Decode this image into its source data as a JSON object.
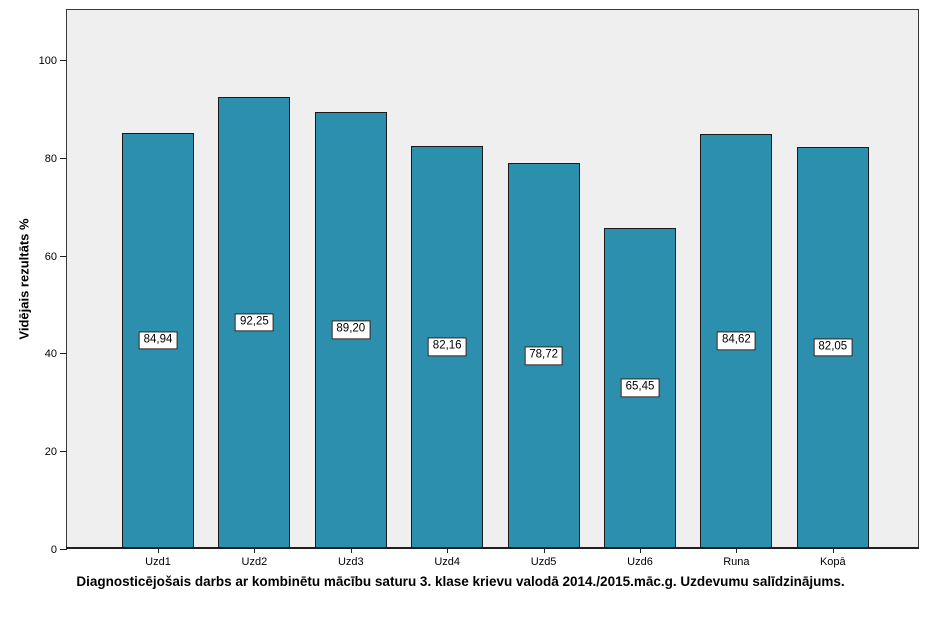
{
  "chart_data": {
    "type": "bar",
    "categories": [
      "Uzd1",
      "Uzd2",
      "Uzd3",
      "Uzd4",
      "Uzd5",
      "Uzd6",
      "Runa",
      "Kopā"
    ],
    "values": [
      84.94,
      92.25,
      89.2,
      82.16,
      78.72,
      65.45,
      84.62,
      82.05
    ],
    "value_labels": [
      "84,94",
      "92,25",
      "89,20",
      "82,16",
      "78,72",
      "65,45",
      "84,62",
      "82,05"
    ],
    "title": "Diagnosticējošais darbs ar kombinētu mācību saturu 3. klase krievu valodā 2014./2015.māc.g. Uzdevumu salīdzinājums.",
    "xlabel": "",
    "ylabel": "Vidējais rezultāts %",
    "ylim": [
      0,
      110
    ],
    "yticks": [
      0,
      20,
      40,
      60,
      80,
      100
    ],
    "grid": false,
    "legend": false,
    "colors": {
      "bar_fill": "#2B8FAD",
      "bar_border": "#1a1a1a",
      "plot_background": "#EFEFEF",
      "value_label_background": "#FFFFFF",
      "axis_line": "#1f1f1f",
      "text": "#000000"
    }
  }
}
